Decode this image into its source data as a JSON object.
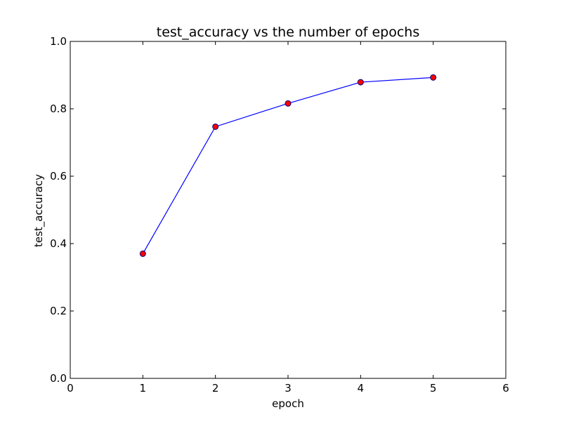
{
  "chart_data": {
    "type": "line",
    "title": "test_accuracy  vs the number of epochs",
    "xlabel": "epoch",
    "ylabel": "test_accuracy",
    "xlim": [
      0,
      6
    ],
    "ylim": [
      0.0,
      1.0
    ],
    "xticks": [
      "0",
      "1",
      "2",
      "3",
      "4",
      "5",
      "6"
    ],
    "yticks": [
      "0.0",
      "0.2",
      "0.4",
      "0.6",
      "0.8",
      "1.0"
    ],
    "grid": false,
    "series": [
      {
        "x": [
          1,
          2,
          3,
          4,
          5
        ],
        "y": [
          0.37,
          0.747,
          0.816,
          0.879,
          0.893
        ],
        "line_color": "#0000ff",
        "marker": "circle",
        "marker_color": "#ff0000",
        "marker_edge_color": "#000080"
      }
    ]
  }
}
